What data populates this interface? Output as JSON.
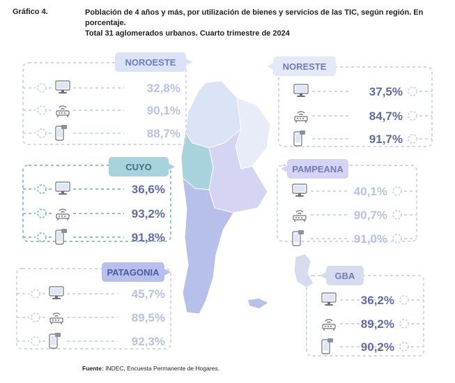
{
  "header": {
    "label": "Gráfico 4.",
    "title_line1": "Población de 4 años y más, por utilización de bienes y servicios de las TIC, según región. En porcentaje.",
    "title_line2": "Total 31 aglomerados urbanos. Cuarto trimestre de 2024"
  },
  "source": {
    "prefix": "Fuente:",
    "text": " INDEC, Encuesta Permanente de Hogares."
  },
  "icons": [
    "computer-icon",
    "wifi-router-icon",
    "mobile-phone-icon"
  ],
  "colors": {
    "noroeste": "#dbe3f7",
    "noreste": "#e5e9f7",
    "cuyo": "#a9d3dc",
    "pampeana": "#d5d4f2",
    "patagonia": "#b6c0ea",
    "gba": "#d6dcee",
    "light_value": "#b8c1e6",
    "dark_value": "#5f6aa6"
  },
  "chart_data": {
    "type": "table",
    "title": "Población de 4 años y más, por utilización de bienes y servicios de las TIC, según región. En porcentaje.",
    "subtitle": "Total 31 aglomerados urbanos. Cuarto trimestre de 2024",
    "units": "%",
    "regions": [
      {
        "name": "NOROESTE",
        "values": [
          "32,8%",
          "90,1%",
          "88,7%"
        ],
        "numeric": [
          32.8,
          90.1,
          88.7
        ]
      },
      {
        "name": "NORESTE",
        "values": [
          "37,5%",
          "84,7%",
          "91,7%"
        ],
        "numeric": [
          37.5,
          84.7,
          91.7
        ]
      },
      {
        "name": "CUYO",
        "values": [
          "36,6%",
          "93,2%",
          "91,8%"
        ],
        "numeric": [
          36.6,
          93.2,
          91.8
        ]
      },
      {
        "name": "PAMPEANA",
        "values": [
          "40,1%",
          "90,7%",
          "91,0%"
        ],
        "numeric": [
          40.1,
          90.7,
          91.0
        ]
      },
      {
        "name": "PATAGONIA",
        "values": [
          "45,7%",
          "89,5%",
          "92,3%"
        ],
        "numeric": [
          45.7,
          89.5,
          92.3
        ]
      },
      {
        "name": "GBA",
        "values": [
          "36,2%",
          "89,2%",
          "90,2%"
        ],
        "numeric": [
          36.2,
          89.2,
          90.2
        ]
      }
    ]
  }
}
